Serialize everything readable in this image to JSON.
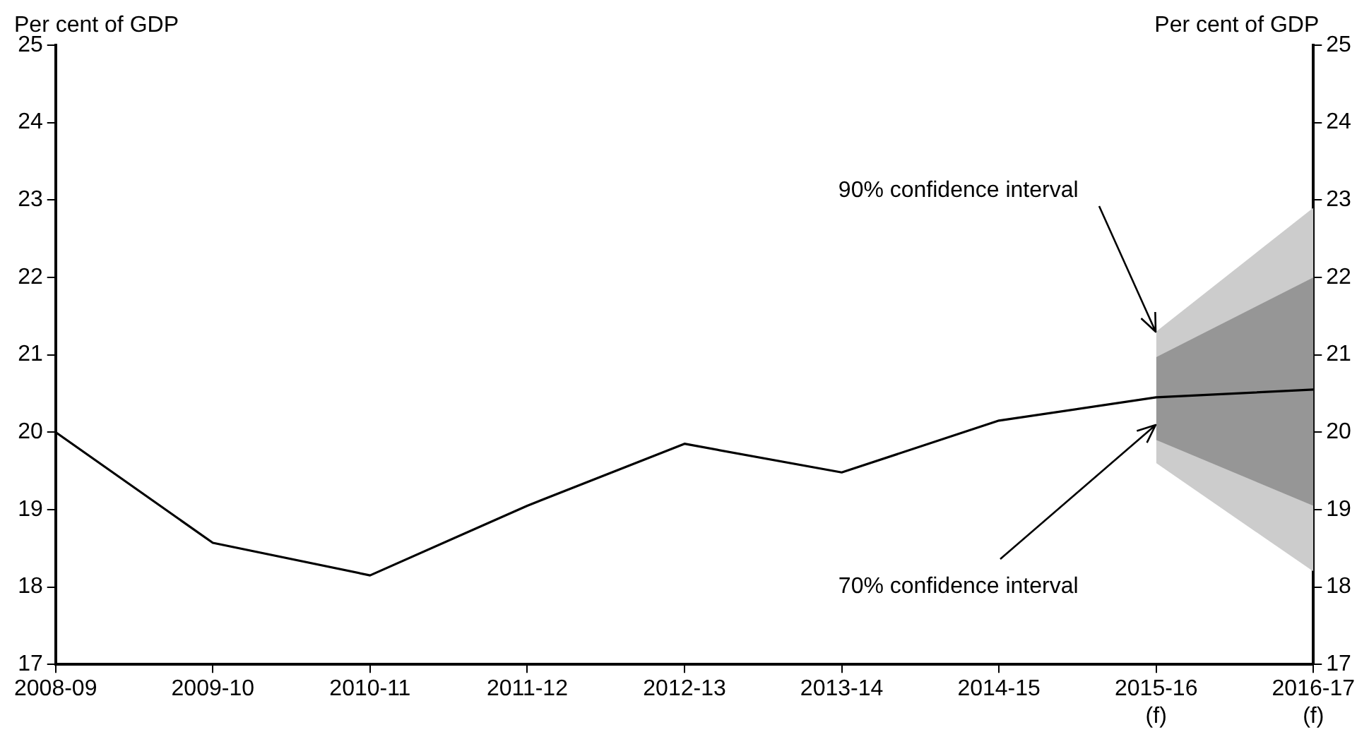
{
  "chart_data": {
    "type": "line",
    "ylabel": "Per cent of GDP",
    "y2label": "Per cent of GDP",
    "categories": [
      "2008-09",
      "2009-10",
      "2010-11",
      "2011-12",
      "2012-13",
      "2013-14",
      "2014-15",
      "2015-16\n(f)",
      "2016-17\n(f)"
    ],
    "series": [
      {
        "color": "#000000",
        "values": [
          20.0,
          18.57,
          18.15,
          19.05,
          19.85,
          19.48,
          20.15,
          20.45,
          20.55
        ]
      },
      {
        "type": "area",
        "color": "#cccccc",
        "values": [
          null,
          null,
          null,
          null,
          null,
          null,
          null,
          null,
          null
        ],
        "lower": [
          null,
          null,
          null,
          null,
          null,
          null,
          null,
          19.6,
          18.2
        ],
        "upper": [
          null,
          null,
          null,
          null,
          null,
          null,
          null,
          21.3,
          22.9
        ]
      },
      {
        "type": "area",
        "color": "#969696",
        "values": [
          null,
          null,
          null,
          null,
          null,
          null,
          null,
          null,
          null
        ],
        "lower": [
          null,
          null,
          null,
          null,
          null,
          null,
          null,
          19.9,
          19.05
        ],
        "upper": [
          null,
          null,
          null,
          null,
          null,
          null,
          null,
          20.97,
          22.0
        ]
      }
    ],
    "ylim": [
      17,
      25
    ],
    "yticks": [
      17,
      18,
      19,
      20,
      21,
      22,
      23,
      24,
      25
    ],
    "y2lim": [
      17,
      25
    ],
    "y2ticks": [
      17,
      18,
      19,
      20,
      21,
      22,
      23,
      24,
      25
    ],
    "grid": false,
    "legend": false,
    "annotations": [
      {
        "text": "90% confidence interval",
        "x": "2015-16\n(f)",
        "y": 21.3
      },
      {
        "text": "70% confidence interval",
        "x": "2015-16\n(f)",
        "y": 20.1
      }
    ]
  }
}
